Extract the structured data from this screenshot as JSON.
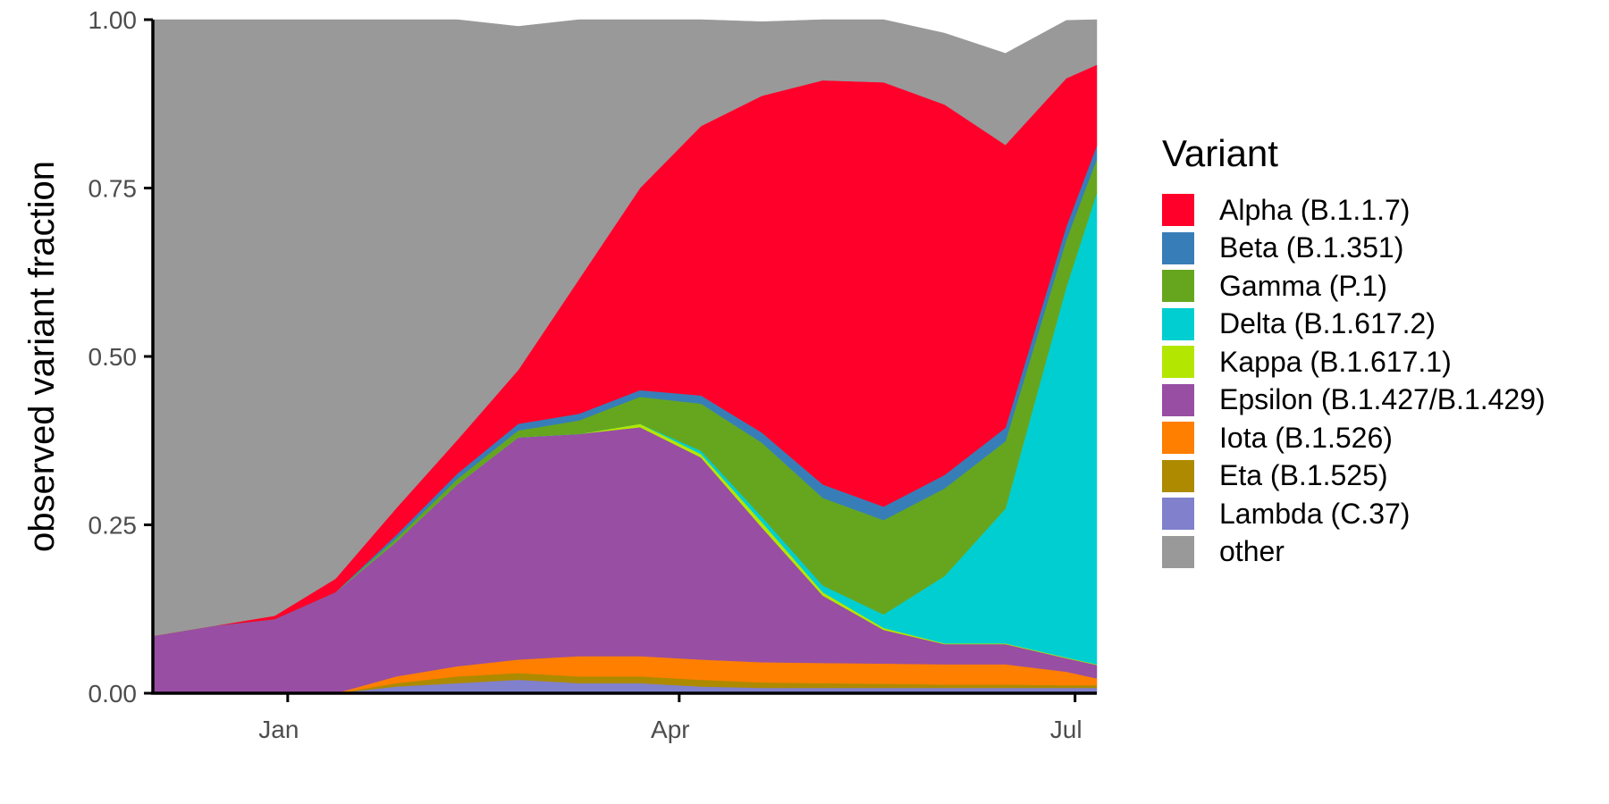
{
  "chart_data": {
    "type": "area",
    "ylabel": "observed variant fraction",
    "xlabel": "",
    "ylim": [
      0,
      1
    ],
    "xlim": [
      "2020-12-01",
      "2021-07-06"
    ],
    "x_ticks": [
      {
        "label": "Jan",
        "date": "2021-01-01"
      },
      {
        "label": "Apr",
        "date": "2021-04-01"
      },
      {
        "label": "Jul",
        "date": "2021-07-01"
      }
    ],
    "y_ticks": [
      {
        "label": "0.00",
        "value": 0
      },
      {
        "label": "0.25",
        "value": 0.25
      },
      {
        "label": "0.50",
        "value": 0.5
      },
      {
        "label": "0.75",
        "value": 0.75
      },
      {
        "label": "1.00",
        "value": 1
      }
    ],
    "legend_title": "Variant",
    "legend_position": "right",
    "x": [
      "2020-12-01",
      "2020-12-15",
      "2020-12-29",
      "2021-01-12",
      "2021-01-26",
      "2021-02-09",
      "2021-02-23",
      "2021-03-09",
      "2021-03-23",
      "2021-04-06",
      "2021-04-20",
      "2021-05-04",
      "2021-05-18",
      "2021-06-01",
      "2021-06-15",
      "2021-06-29",
      "2021-07-06"
    ],
    "series": [
      {
        "name": "Lambda (C.37)",
        "color": "#8080cc",
        "values": [
          0,
          0,
          0,
          0.0,
          0.01,
          0.015,
          0.02,
          0.015,
          0.015,
          0.01,
          0.008,
          0.008,
          0.008,
          0.008,
          0.008,
          0.008,
          0.008
        ]
      },
      {
        "name": "Eta (B.1.525)",
        "color": "#ad8a00",
        "values": [
          0,
          0,
          0,
          0.0,
          0.005,
          0.01,
          0.01,
          0.01,
          0.01,
          0.01,
          0.008,
          0.007,
          0.006,
          0.005,
          0.005,
          0.004,
          0.004
        ]
      },
      {
        "name": "Iota (B.1.526)",
        "color": "#ff7f00",
        "values": [
          0,
          0,
          0,
          0.0,
          0.01,
          0.015,
          0.02,
          0.03,
          0.03,
          0.03,
          0.03,
          0.03,
          0.03,
          0.03,
          0.03,
          0.02,
          0.01
        ]
      },
      {
        "name": "Epsilon (B.1.427/B.1.429)",
        "color": "#984ea3",
        "values": [
          0.085,
          0.1,
          0.11,
          0.15,
          0.2,
          0.27,
          0.33,
          0.33,
          0.34,
          0.3,
          0.2,
          0.1,
          0.05,
          0.03,
          0.03,
          0.02,
          0.02
        ]
      },
      {
        "name": "Kappa (B.1.617.1)",
        "color": "#b3e600",
        "values": [
          0,
          0,
          0,
          0,
          0,
          0,
          0,
          0,
          0.005,
          0.005,
          0.008,
          0.005,
          0.003,
          0.001,
          0.001,
          0.001,
          0.001
        ]
      },
      {
        "name": "Delta (B.1.617.2)",
        "color": "#00ced1",
        "values": [
          0,
          0,
          0,
          0,
          0,
          0,
          0,
          0,
          0,
          0.005,
          0.008,
          0.01,
          0.02,
          0.1,
          0.2,
          0.55,
          0.7
        ]
      },
      {
        "name": "Gamma (P.1)",
        "color": "#66a61e",
        "values": [
          0,
          0,
          0,
          0,
          0.005,
          0.008,
          0.01,
          0.02,
          0.04,
          0.07,
          0.11,
          0.13,
          0.14,
          0.13,
          0.1,
          0.07,
          0.05
        ]
      },
      {
        "name": "Beta (B.1.351)",
        "color": "#377eb8",
        "values": [
          0,
          0,
          0,
          0,
          0.005,
          0.008,
          0.01,
          0.01,
          0.01,
          0.012,
          0.015,
          0.02,
          0.02,
          0.02,
          0.02,
          0.02,
          0.02
        ]
      },
      {
        "name": "Alpha (B.1.1.7)",
        "color": "#ff002a",
        "values": [
          0,
          0,
          0.005,
          0.02,
          0.04,
          0.05,
          0.08,
          0.2,
          0.3,
          0.4,
          0.5,
          0.6,
          0.63,
          0.55,
          0.42,
          0.22,
          0.12
        ]
      },
      {
        "name": "other",
        "color": "#999999",
        "values": [
          0.915,
          0.9,
          0.885,
          0.83,
          0.725,
          0.624,
          0.51,
          0.385,
          0.25,
          0.158,
          0.11,
          0.09,
          0.093,
          0.106,
          0.136,
          0.086,
          0.067
        ]
      }
    ]
  },
  "legend_order": [
    "Alpha (B.1.1.7)",
    "Beta (B.1.351)",
    "Gamma (P.1)",
    "Delta (B.1.617.2)",
    "Kappa (B.1.617.1)",
    "Epsilon (B.1.427/B.1.429)",
    "Iota (B.1.526)",
    "Eta (B.1.525)",
    "Lambda (C.37)",
    "other"
  ]
}
